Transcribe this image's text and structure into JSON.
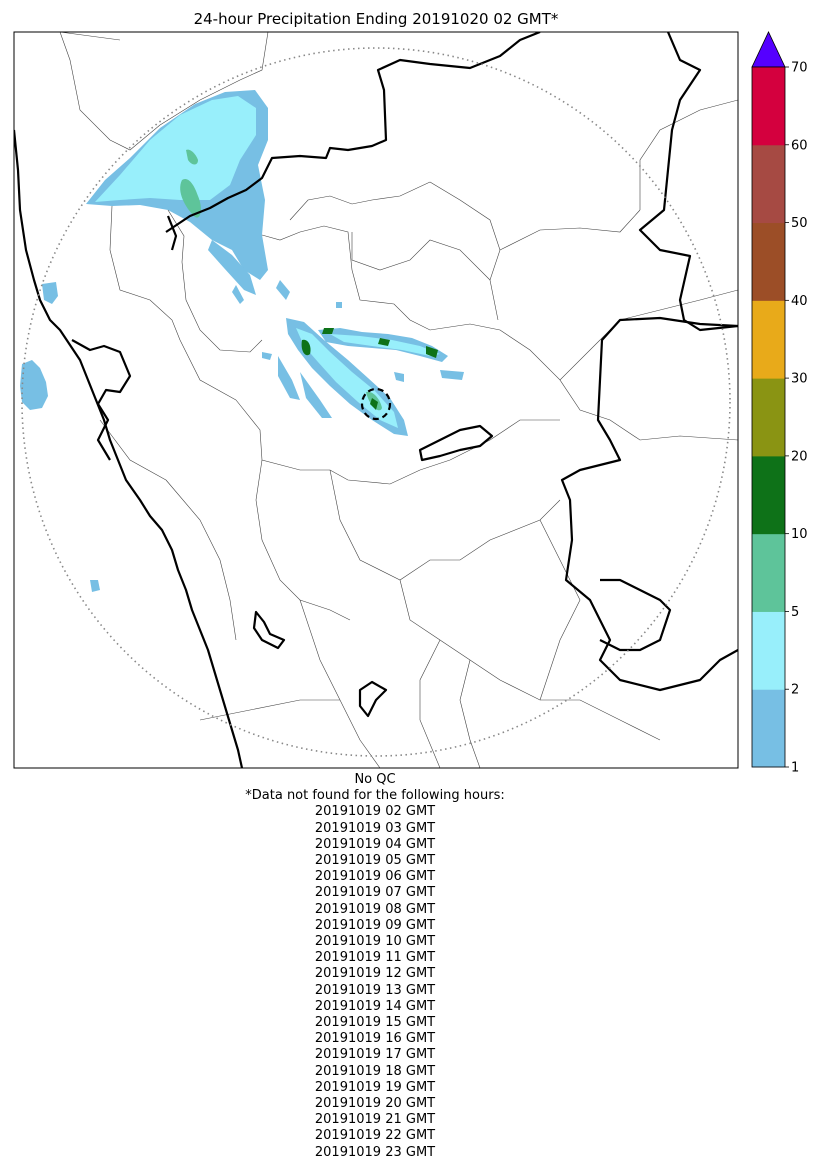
{
  "title": "24-hour Precipitation Ending 20191020 02 GMT*",
  "colorbar": {
    "ticks": [
      "1",
      "2",
      "5",
      "10",
      "20",
      "30",
      "40",
      "50",
      "60",
      "70"
    ],
    "colors": [
      "#77bfe4",
      "#98effb",
      "#5ec49a",
      "#0e7218",
      "#8a9413",
      "#e8aa1a",
      "#9c4e27",
      "#a64a43",
      "#d4003e"
    ],
    "extend_color": "#5500ff"
  },
  "qc_note": "No QC",
  "missing_header": "*Data not found for the following hours:",
  "missing_hours": [
    "20191019 02 GMT",
    "20191019 03 GMT",
    "20191019 04 GMT",
    "20191019 05 GMT",
    "20191019 06 GMT",
    "20191019 07 GMT",
    "20191019 08 GMT",
    "20191019 09 GMT",
    "20191019 10 GMT",
    "20191019 11 GMT",
    "20191019 12 GMT",
    "20191019 13 GMT",
    "20191019 14 GMT",
    "20191019 15 GMT",
    "20191019 16 GMT",
    "20191019 17 GMT",
    "20191019 18 GMT",
    "20191019 19 GMT",
    "20191019 20 GMT",
    "20191019 21 GMT",
    "20191019 22 GMT",
    "20191019 23 GMT"
  ]
}
